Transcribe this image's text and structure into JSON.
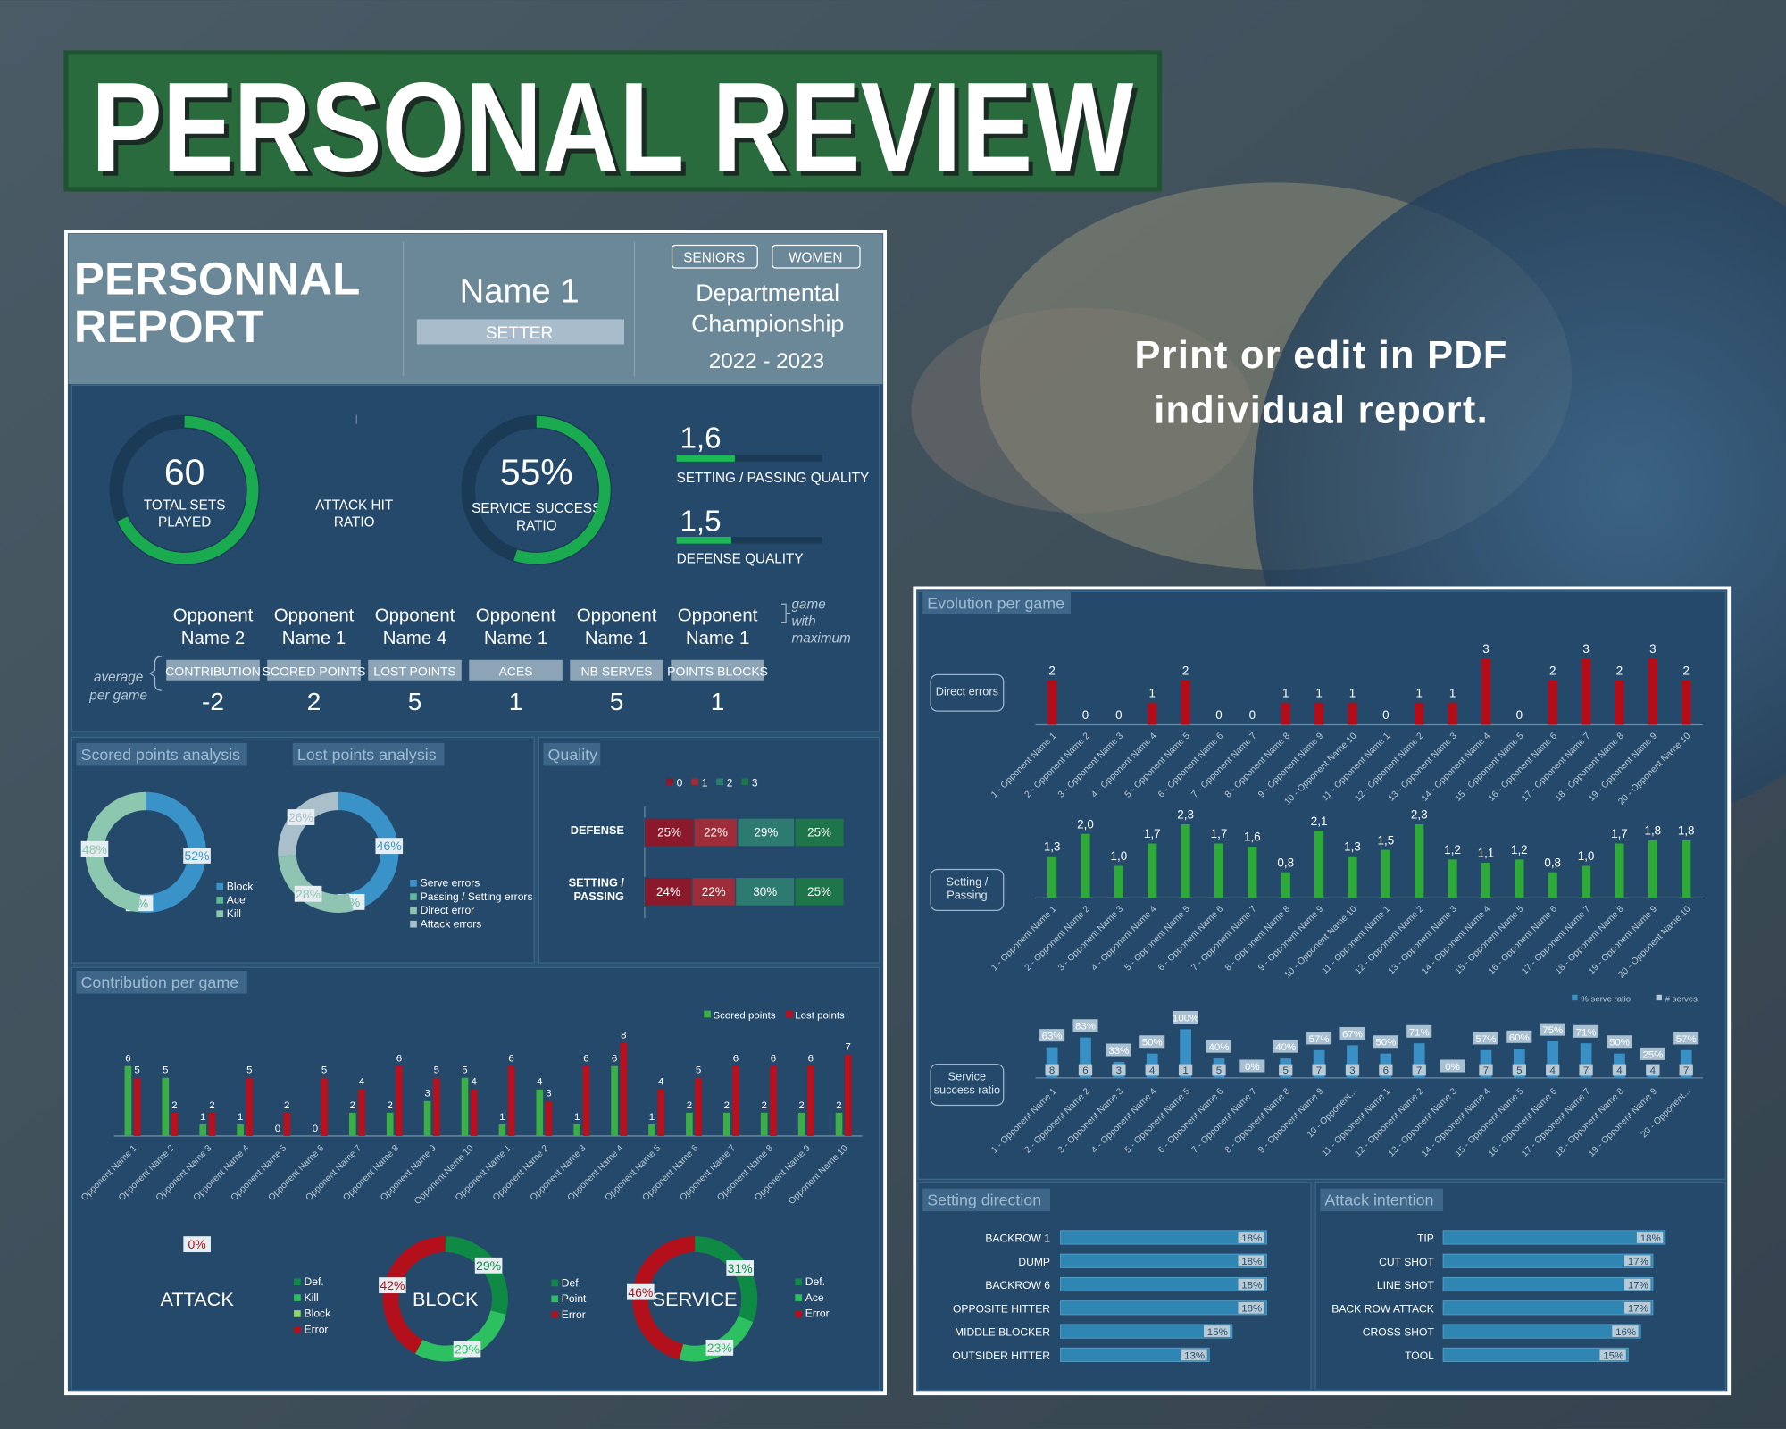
{
  "banner": {
    "title": "PERSONAL REVIEW"
  },
  "promo": {
    "text": "Print or edit in PDF individual report."
  },
  "report": {
    "title": "PERSONNAL REPORT",
    "player": {
      "name": "Name 1",
      "position": "SETTER"
    },
    "tags": [
      "SENIORS",
      "WOMEN"
    ],
    "competition": "Departmental Championship",
    "season": "2022 - 2023",
    "kpis": {
      "total_sets": {
        "value": 60,
        "label": "TOTAL SETS PLAYED"
      },
      "attack_hit_ratio": {
        "label": "ATTACK HIT RATIO"
      },
      "service_success_ratio": {
        "value": 55,
        "value_label": "55%",
        "label": "SERVICE SUCCESS RATIO"
      },
      "setting_passing_quality": {
        "value": 1.6,
        "value_label": "1,6",
        "label": "SETTING / PASSING QUALITY",
        "xlim": [
          0,
          4
        ]
      },
      "defense_quality": {
        "value": 1.5,
        "value_label": "1,5",
        "label": "DEFENSE QUALITY",
        "xlim": [
          0,
          4
        ]
      }
    },
    "per_game": {
      "row_note": "average per game",
      "column_note": "game with maximum",
      "columns": [
        {
          "opponent": "Opponent Name 2",
          "label": "CONTRIBUTION",
          "value": -2
        },
        {
          "opponent": "Opponent Name 1",
          "label": "SCORED POINTS",
          "value": 2
        },
        {
          "opponent": "Opponent Name 4",
          "label": "LOST POINTS",
          "value": 5
        },
        {
          "opponent": "Opponent Name 1",
          "label": "ACES",
          "value": 1
        },
        {
          "opponent": "Opponent Name 1",
          "label": "NB SERVES",
          "value": 5
        },
        {
          "opponent": "Opponent Name 1",
          "label": "POINTS BLOCKS",
          "value": 1
        }
      ]
    },
    "panels": {
      "evolution": "Evolution per game"
    }
  },
  "chart_data": [
    {
      "type": "donut",
      "title": "Scored points analysis",
      "categories": [
        "Block",
        "Ace",
        "Kill"
      ],
      "values": [
        52,
        0,
        48
      ],
      "value_labels": [
        "52%",
        "0%",
        "48%"
      ],
      "colors": [
        "#3a93c8",
        "#5fb89a",
        "#8cc7b0"
      ]
    },
    {
      "type": "donut",
      "title": "Lost points analysis",
      "categories": [
        "Serve errors",
        "Passing / Setting errors",
        "Direct error",
        "Attack errors"
      ],
      "values": [
        46,
        0,
        28,
        26
      ],
      "value_labels": [
        "46%",
        "0%",
        "28%",
        "26%"
      ],
      "colors": [
        "#3a93c8",
        "#5fb89a",
        "#8fc4b2",
        "#a9bfca"
      ]
    },
    {
      "type": "stackedbar",
      "title": "Quality",
      "categories": [
        "DEFENSE",
        "SETTING / PASSING"
      ],
      "xlim": [
        0,
        101
      ],
      "series": [
        {
          "name": "0",
          "color": "#8a1a2b",
          "values": [
            25,
            24
          ],
          "value_labels": [
            "25%",
            "24%"
          ]
        },
        {
          "name": "1",
          "color": "#9e2d3a",
          "values": [
            22,
            22
          ],
          "value_labels": [
            "22%",
            "22%"
          ]
        },
        {
          "name": "2",
          "color": "#2d7a70",
          "values": [
            29,
            30
          ],
          "value_labels": [
            "29%",
            "30%"
          ]
        },
        {
          "name": "3",
          "color": "#1d7549",
          "values": [
            25,
            25
          ],
          "value_labels": [
            "25%",
            "25%"
          ]
        }
      ]
    },
    {
      "type": "bar",
      "title": "Contribution per game",
      "ylim": [
        0,
        9
      ],
      "categories": [
        "Opponent Name 1",
        "Opponent Name 2",
        "Opponent Name 3",
        "Opponent Name 4",
        "Opponent Name 5",
        "Opponent Name 6",
        "Opponent Name 7",
        "Opponent Name 8",
        "Opponent Name 9",
        "Opponent Name 10",
        "Opponent Name 1",
        "Opponent Name 2",
        "Opponent Name 3",
        "Opponent Name 4",
        "Opponent Name 5",
        "Opponent Name 6",
        "Opponent Name 7",
        "Opponent Name 8",
        "Opponent Name 9",
        "Opponent Name 10"
      ],
      "series": [
        {
          "name": "Scored points",
          "color": "#3cae47",
          "values": [
            6,
            5,
            1,
            1,
            0,
            0,
            2,
            2,
            3,
            5,
            1,
            4,
            1,
            6,
            1,
            2,
            2,
            2,
            2,
            2
          ]
        },
        {
          "name": "Lost points",
          "color": "#b8111d",
          "values": [
            5,
            2,
            2,
            5,
            2,
            5,
            4,
            6,
            5,
            4,
            6,
            3,
            6,
            8,
            4,
            5,
            6,
            6,
            6,
            7
          ]
        }
      ]
    },
    {
      "type": "donut",
      "title": "ATTACK",
      "categories": [
        "Def.",
        "Kill",
        "Block",
        "Error"
      ],
      "values": [
        null,
        null,
        null,
        0
      ],
      "value_labels": [
        null,
        null,
        null,
        "0%"
      ],
      "colors": [
        "#0f8a45",
        "#2cc060",
        "#8fd66b",
        "#b3101c"
      ]
    },
    {
      "type": "donut",
      "title": "BLOCK",
      "categories": [
        "Def.",
        "Point",
        "Error"
      ],
      "values": [
        29,
        29,
        42
      ],
      "value_labels": [
        "29%",
        "29%",
        "42%"
      ],
      "colors": [
        "#0f8a45",
        "#2cc060",
        "#b3101c"
      ]
    },
    {
      "type": "donut",
      "title": "SERVICE",
      "categories": [
        "Def.",
        "Ace",
        "Error"
      ],
      "values": [
        31,
        23,
        46
      ],
      "value_labels": [
        "31%",
        "23%",
        "46%"
      ],
      "colors": [
        "#0f8a45",
        "#2cc060",
        "#b3101c"
      ]
    },
    {
      "type": "bar",
      "title": "Direct errors",
      "ylim": [
        0,
        3.3
      ],
      "color": "#b30d1a",
      "categories": [
        "1 - Opponent Name 1",
        "2 - Opponent Name 2",
        "3 - Opponent Name 3",
        "4 - Opponent Name 4",
        "5 - Opponent Name 5",
        "6 - Opponent Name 6",
        "7 - Opponent Name 7",
        "8 - Opponent Name 8",
        "9 - Opponent Name 9",
        "10 - Opponent Name 10",
        "11 - Opponent Name 1",
        "12 - Opponent Name 2",
        "13 - Opponent Name 3",
        "14 - Opponent Name 4",
        "15 - Opponent Name 5",
        "16 - Opponent Name 6",
        "17 - Opponent Name 7",
        "18 - Opponent Name 8",
        "19 - Opponent Name 9",
        "20 - Opponent Name 10"
      ],
      "values": [
        2,
        0,
        0,
        1,
        2,
        0,
        0,
        1,
        1,
        1,
        0,
        1,
        1,
        3,
        0,
        2,
        3,
        2,
        3,
        2
      ]
    },
    {
      "type": "bar",
      "title": "Setting / Passing",
      "ylim": [
        0,
        2.6
      ],
      "color": "#2fa83c",
      "categories": [
        "1 - Opponent Name 1",
        "2 - Opponent Name 2",
        "3 - Opponent Name 3",
        "4 - Opponent Name 4",
        "5 - Opponent Name 5",
        "6 - Opponent Name 6",
        "7 - Opponent Name 7",
        "8 - Opponent Name 8",
        "9 - Opponent Name 9",
        "10 - Opponent Name 10",
        "11 - Opponent Name 1",
        "12 - Opponent Name 2",
        "13 - Opponent Name 3",
        "14 - Opponent Name 4",
        "15 - Opponent Name 5",
        "16 - Opponent Name 6",
        "17 - Opponent Name 7",
        "18 - Opponent Name 8",
        "19 - Opponent Name 9",
        "20 - Opponent Name 10"
      ],
      "values": [
        1.3,
        2.0,
        1.0,
        1.7,
        2.3,
        1.7,
        1.6,
        0.8,
        2.1,
        1.3,
        1.5,
        2.3,
        1.2,
        1.1,
        1.2,
        0.8,
        1.0,
        1.7,
        1.8,
        1.8
      ],
      "value_labels": [
        "1,3",
        "2,0",
        "1,0",
        "1,7",
        "2,3",
        "1,7",
        "1,6",
        "0,8",
        "2,1",
        "1,3",
        "1,5",
        "2,3",
        "1,2",
        "1,1",
        "1,2",
        "0,8",
        "1,0",
        "1,7",
        "1,8",
        "1,8"
      ]
    },
    {
      "type": "bar",
      "title": "Service success ratio",
      "ylim": [
        0,
        110
      ],
      "categories": [
        "1 - Opponent Name 1",
        "2 - Opponent Name 2",
        "3 - Opponent Name 3",
        "4 - Opponent Name 4",
        "5 - Opponent Name 5",
        "6 - Opponent Name 6",
        "7 - Opponent Name 7",
        "8 - Opponent Name 8",
        "9 - Opponent Name 9",
        "10 - Opponent...",
        "11 - Opponent Name 1",
        "12 - Opponent Name 2",
        "13 - Opponent Name 3",
        "14 - Opponent Name 4",
        "15 - Opponent Name 5",
        "16 - Opponent Name 6",
        "17 - Opponent Name 7",
        "18 - Opponent Name 8",
        "19 - Opponent Name 9",
        "20 - Opponent..."
      ],
      "series": [
        {
          "name": "% serve ratio",
          "color": "#3a8fc4",
          "values": [
            63,
            83,
            33,
            50,
            100,
            40,
            0,
            40,
            57,
            67,
            50,
            71,
            0,
            57,
            60,
            75,
            71,
            50,
            25,
            57
          ],
          "value_labels": [
            "63%",
            "83%",
            "33%",
            "50%",
            "100%",
            "40%",
            "0%",
            "40%",
            "57%",
            "67%",
            "50%",
            "71%",
            "0%",
            "57%",
            "60%",
            "75%",
            "71%",
            "50%",
            "25%",
            "57%"
          ]
        },
        {
          "name": "# serves",
          "color": "#b8cad6",
          "values": [
            8,
            6,
            3,
            4,
            1,
            5,
            null,
            5,
            7,
            3,
            6,
            7,
            null,
            7,
            5,
            4,
            7,
            4,
            4,
            7
          ]
        }
      ]
    },
    {
      "type": "hbar",
      "title": "Setting direction",
      "xlim": [
        0,
        18
      ],
      "color": "#2f86b3",
      "categories": [
        "BACKROW 1",
        "DUMP",
        "BACKROW 6",
        "OPPOSITE HITTER",
        "MIDDLE BLOCKER",
        "OUTSIDER HITTER"
      ],
      "values": [
        18,
        18,
        18,
        18,
        15,
        13
      ],
      "value_labels": [
        "18%",
        "18%",
        "18%",
        "18%",
        "15%",
        "13%"
      ]
    },
    {
      "type": "hbar",
      "title": "Attack intention",
      "xlim": [
        0,
        18
      ],
      "color": "#2f86b3",
      "categories": [
        "TIP",
        "CUT SHOT",
        "LINE SHOT",
        "BACK ROW ATTACK",
        "CROSS SHOT",
        "TOOL"
      ],
      "values": [
        18,
        17,
        17,
        17,
        16,
        15
      ],
      "value_labels": [
        "18%",
        "17%",
        "17%",
        "17%",
        "16%",
        "15%"
      ]
    }
  ]
}
